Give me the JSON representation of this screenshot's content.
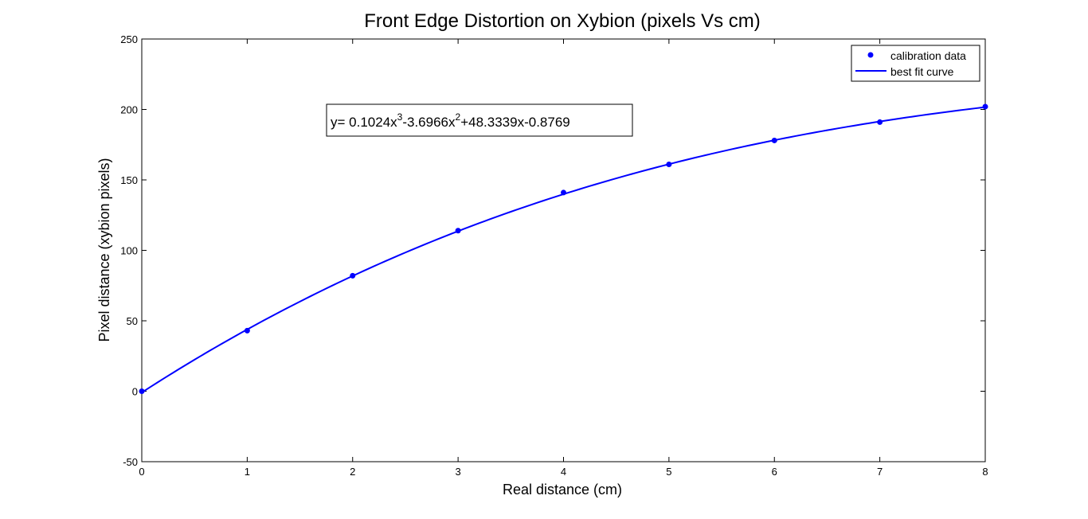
{
  "chart_data": {
    "type": "line",
    "title": "Front Edge Distortion on Xybion (pixels Vs cm)",
    "xlabel": "Real distance (cm)",
    "ylabel": "Pixel distance (xybion pixels)",
    "xlim": [
      0,
      8
    ],
    "ylim": [
      -50,
      250
    ],
    "xticks": [
      0,
      1,
      2,
      3,
      4,
      5,
      6,
      7,
      8
    ],
    "yticks": [
      -50,
      0,
      50,
      100,
      150,
      200,
      250
    ],
    "grid": false,
    "legend_position": "top-right",
    "series": [
      {
        "name": "calibration data",
        "kind": "markers",
        "color": "#0000ff",
        "x": [
          0,
          1,
          2,
          3,
          4,
          5,
          6,
          7,
          8
        ],
        "y": [
          0,
          43,
          82,
          114,
          141,
          161,
          178,
          191,
          202
        ]
      },
      {
        "name": "best fit curve",
        "kind": "line",
        "color": "#0000ff",
        "coefficients": [
          0.1024,
          -3.6966,
          48.3339,
          -0.8769
        ]
      }
    ],
    "annotation": {
      "prefix": "y= 0.1024x",
      "sup1": "3",
      "mid": "-3.6966x",
      "sup2": "2",
      "suffix": "+48.3339x-0.8769"
    }
  }
}
